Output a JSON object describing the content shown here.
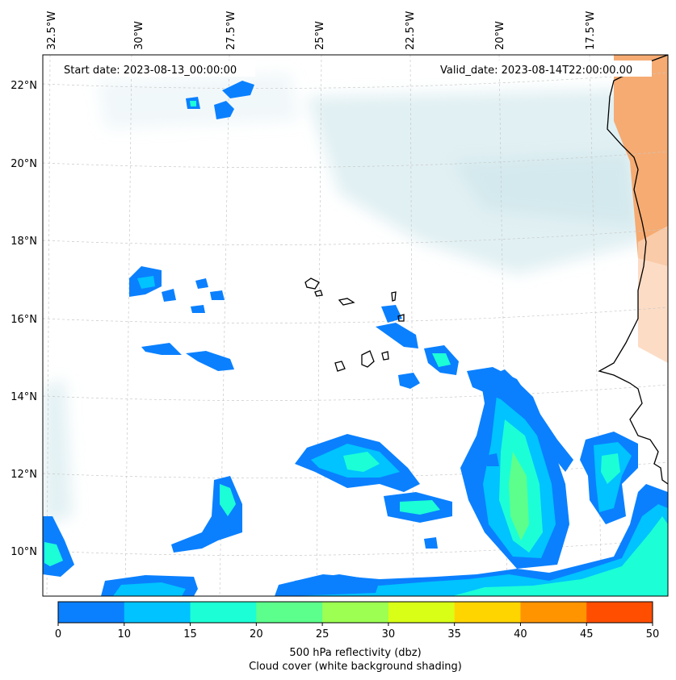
{
  "header": {
    "start_date": "Start date: 2023-08-13_00:00:00",
    "valid_date": "Valid_date: 2023-08-14T22:00:00.00"
  },
  "map": {
    "lon_labels": [
      "32.5°W",
      "30°W",
      "27.5°W",
      "25°W",
      "22.5°W",
      "20°W",
      "17.5°W"
    ],
    "lat_labels": [
      "22°N",
      "20°N",
      "18°N",
      "16°N",
      "14°N",
      "12°N",
      "10°N"
    ]
  },
  "colorbar": {
    "ticks": [
      "0",
      "10",
      "15",
      "20",
      "25",
      "30",
      "35",
      "40",
      "45",
      "50"
    ],
    "colors": [
      "#0a80ff",
      "#00c3ff",
      "#1cffd6",
      "#5cff8c",
      "#9cff52",
      "#d9ff17",
      "#ffd500",
      "#ff9400",
      "#ff4e00"
    ],
    "label_line1": "500 hPa reflectivity (dbz)",
    "label_line2": "Cloud cover (white background shading)"
  }
}
